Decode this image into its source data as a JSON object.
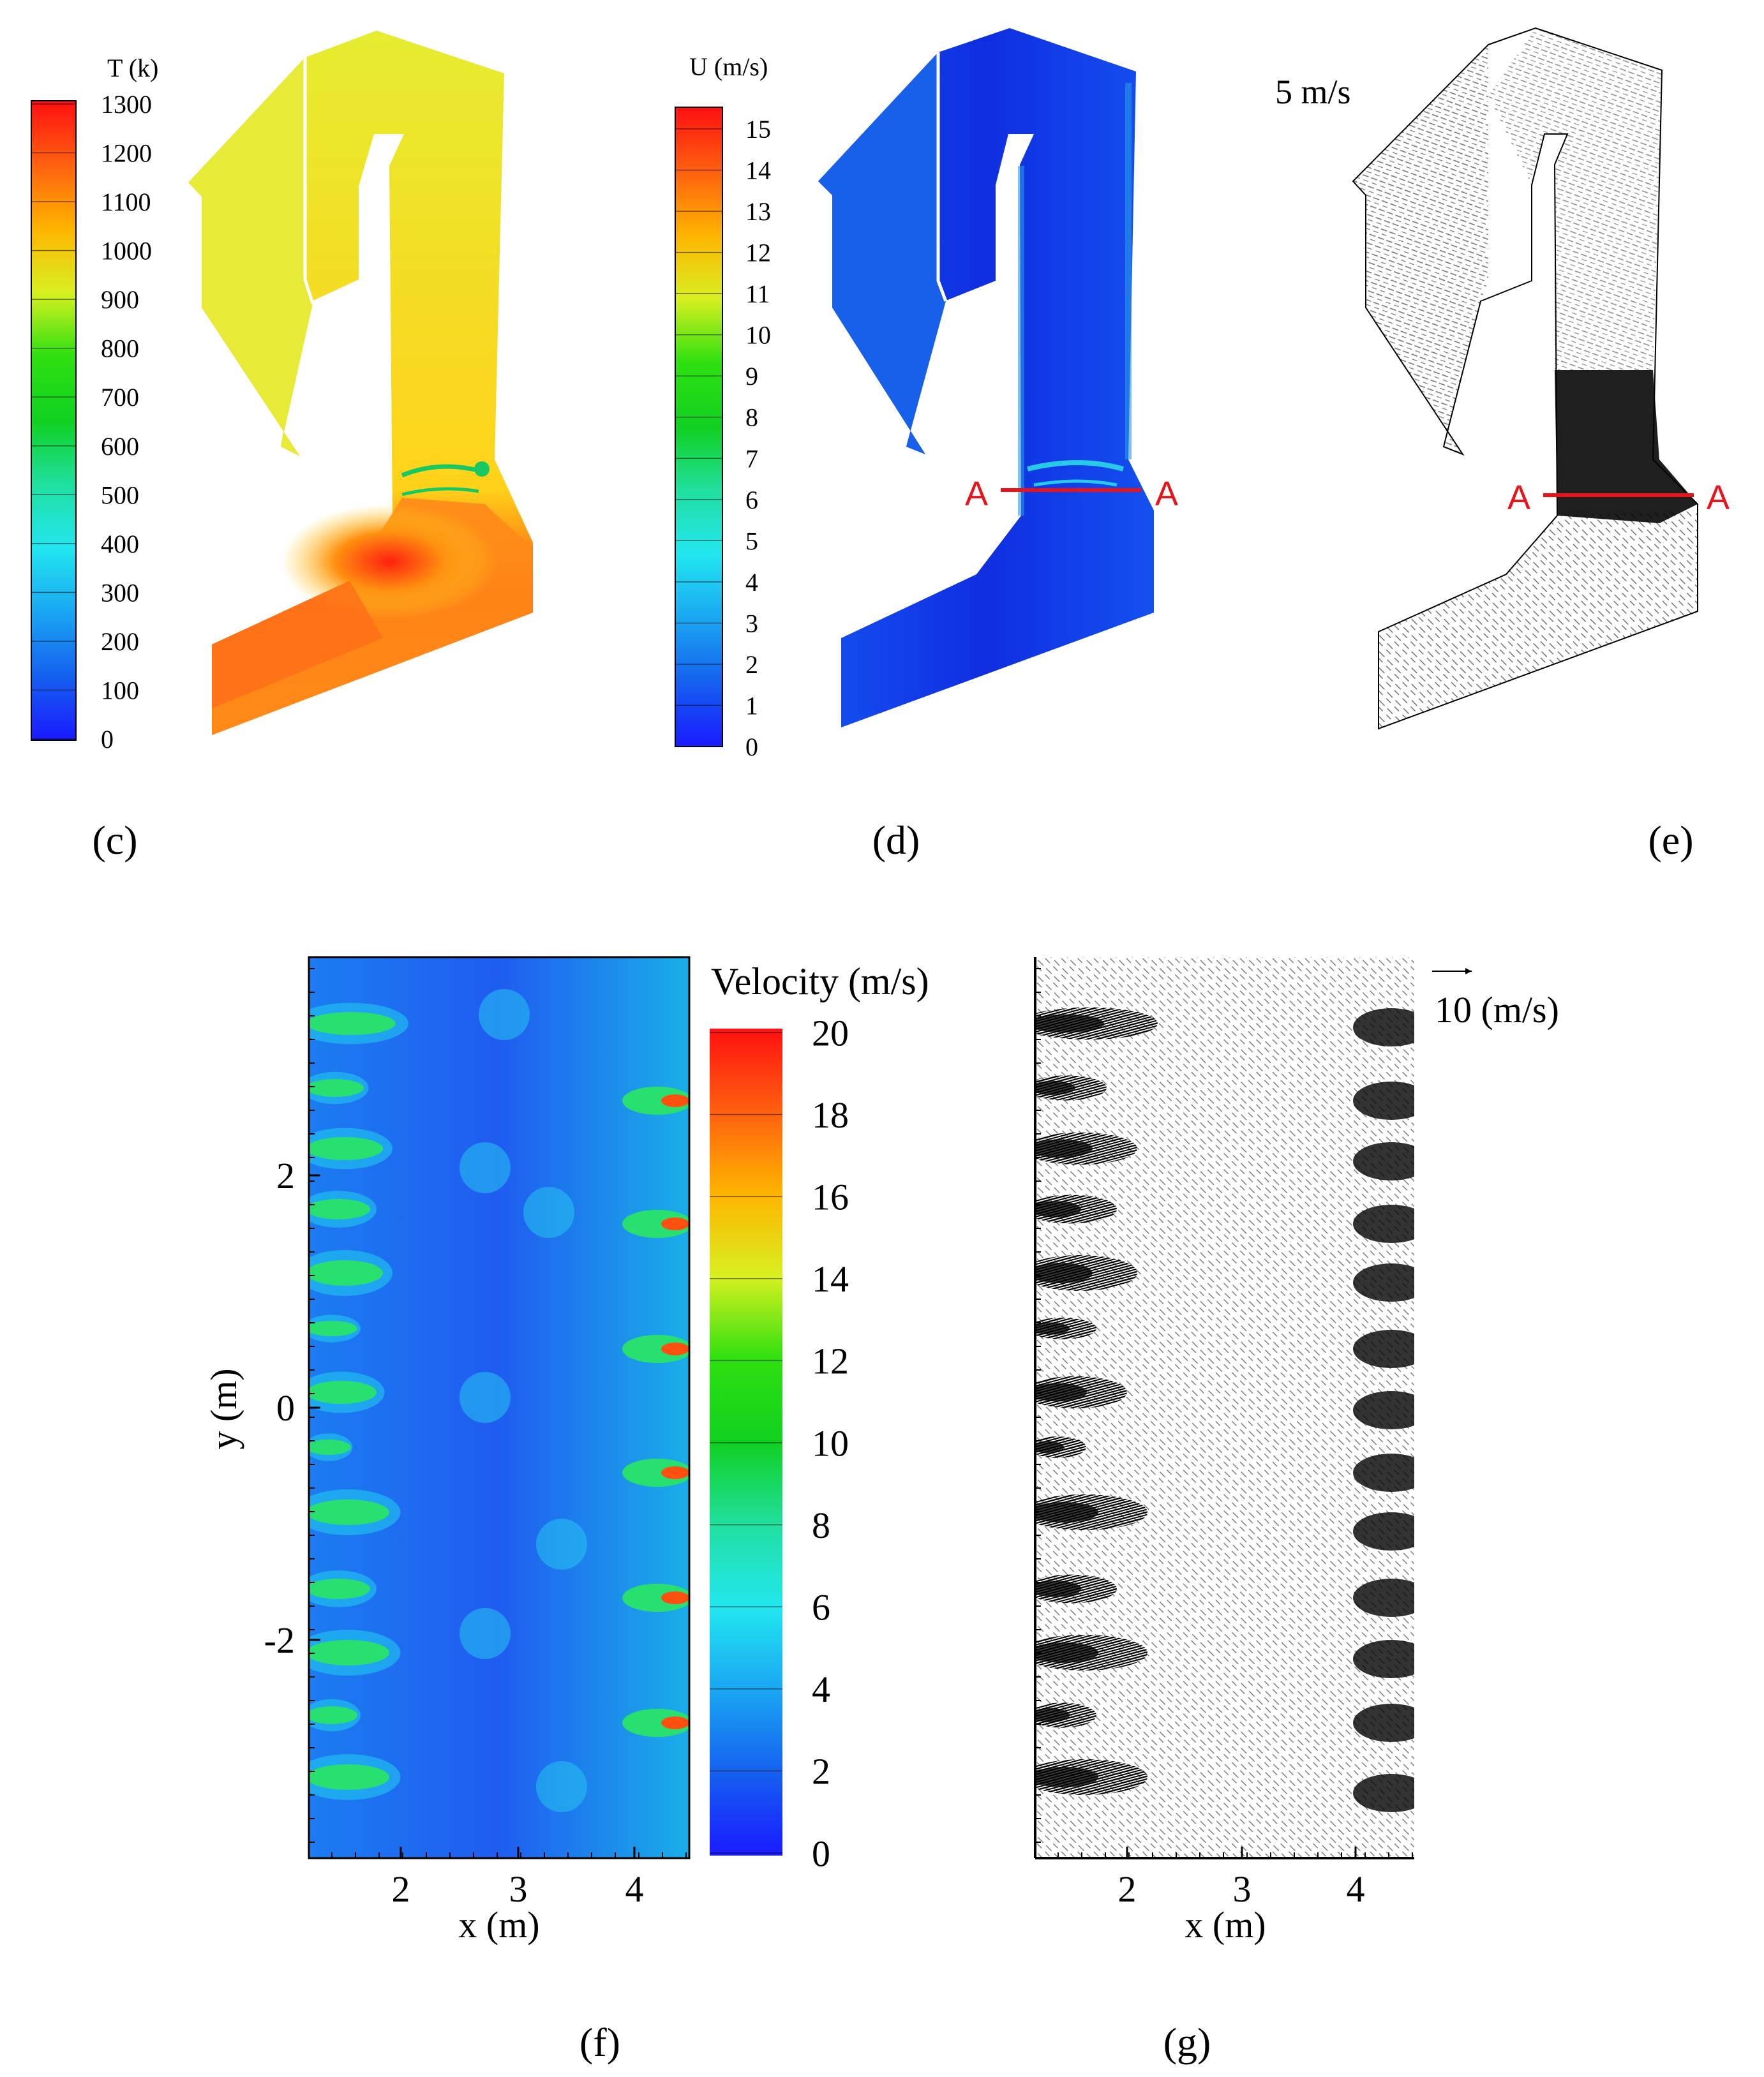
{
  "panels": {
    "c": {
      "label": "(c)",
      "colorbar": {
        "title": "T (k)",
        "ticks": [
          "1300",
          "1200",
          "1100",
          "1000",
          "900",
          "800",
          "700",
          "600",
          "500",
          "400",
          "300",
          "200",
          "100",
          "0"
        ]
      }
    },
    "d": {
      "label": "(d)",
      "colorbar": {
        "title": "U (m/s)",
        "ticks": [
          "15",
          "14",
          "13",
          "12",
          "11",
          "10",
          "9",
          "8",
          "7",
          "6",
          "5",
          "4",
          "3",
          "2",
          "1",
          "0"
        ]
      },
      "section_left": "A",
      "section_right": "A"
    },
    "e": {
      "label": "(e)",
      "reference_vector": "5 m/s",
      "section_left": "A",
      "section_right": "A"
    },
    "f": {
      "label": "(f)",
      "colorbar": {
        "title": "Velocity (m/s)",
        "ticks": [
          "20",
          "18",
          "16",
          "14",
          "12",
          "10",
          "8",
          "6",
          "4",
          "2",
          "0"
        ]
      },
      "xlabel": "x (m)",
      "ylabel": "y (m)",
      "xticks": [
        "2",
        "3",
        "4"
      ],
      "yticks": [
        "2",
        "0",
        "-2"
      ]
    },
    "g": {
      "label": "(g)",
      "reference_vector": "10 (m/s)",
      "xlabel": "x (m)",
      "xticks": [
        "2",
        "3",
        "4"
      ]
    }
  },
  "colors": {
    "section_line": "#e8141b",
    "temperature_field": "#f2d21a",
    "velocity_field": "#1244e0"
  }
}
